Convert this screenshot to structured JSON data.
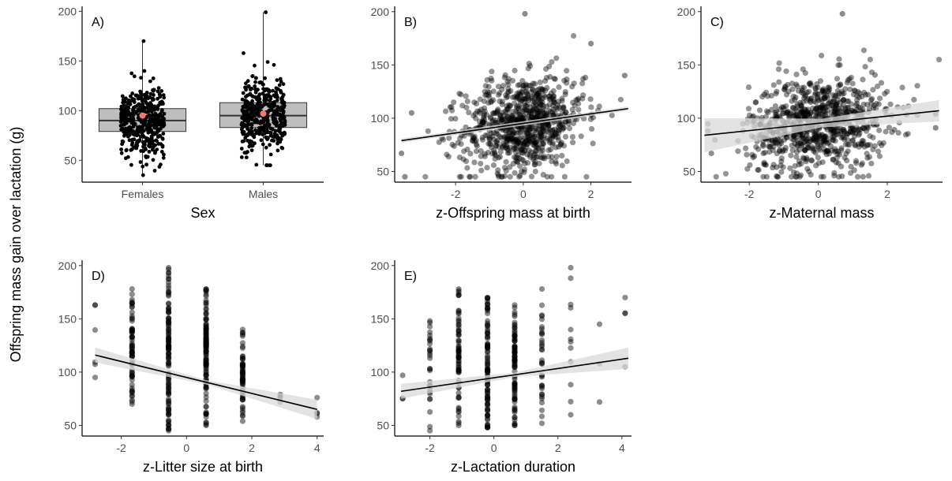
{
  "figure": {
    "shared_ylabel": "Offspring mass gain over lactation (g)",
    "colors": {
      "points": "#000000",
      "mean_point": "#f8766d",
      "box_fill": "#bebebe",
      "ribbon": "#d9d9d9",
      "fit_line": "#000000"
    }
  },
  "chart_data": [
    {
      "id": "A",
      "type": "box",
      "panel_label": "A)",
      "xlabel": "Sex",
      "ylabel": "Offspring mass gain over lactation (g)",
      "categories": [
        "Females",
        "Males"
      ],
      "ylim": [
        28,
        205
      ],
      "yticks": [
        50,
        100,
        150,
        200
      ],
      "boxes": [
        {
          "category": "Females",
          "q1": 79,
          "median": 90,
          "q3": 102,
          "mean": 95,
          "min": 35,
          "max": 170
        },
        {
          "category": "Males",
          "q1": 83,
          "median": 95,
          "q3": 108,
          "mean": 97,
          "min": 45,
          "max": 199
        }
      ],
      "jitter_points": "individual observations overlaid as black jittered points",
      "grid": false
    },
    {
      "id": "B",
      "type": "scatter",
      "panel_label": "B)",
      "xlabel": "z-Offspring mass at birth",
      "ylabel": "Offspring mass gain over lactation (g)",
      "xlim": [
        -3.8,
        3.2
      ],
      "ylim": [
        40,
        205
      ],
      "xticks": [
        -2,
        0,
        2
      ],
      "yticks": [
        50,
        100,
        150,
        200
      ],
      "fit": {
        "x": [
          -3.6,
          3.1
        ],
        "y": [
          79,
          109
        ],
        "ci": 2
      },
      "point_cloud": {
        "x_center": 0,
        "x_sd": 0.9,
        "y_center": 92,
        "y_sd": 22
      },
      "notable_points": [
        {
          "x": -3.5,
          "y": 45
        },
        {
          "x": -3.6,
          "y": 67
        },
        {
          "x": -3.3,
          "y": 105
        },
        {
          "x": 0.05,
          "y": 198
        },
        {
          "x": 3.0,
          "y": 140
        },
        {
          "x": 2.0,
          "y": 170
        }
      ],
      "grid": false
    },
    {
      "id": "C",
      "type": "scatter",
      "panel_label": "C)",
      "xlabel": "z-Maternal mass",
      "ylabel": "Offspring mass gain over lactation (g)",
      "xlim": [
        -3.4,
        3.6
      ],
      "ylim": [
        40,
        205
      ],
      "xticks": [
        -2,
        0,
        2
      ],
      "yticks": [
        50,
        100,
        150,
        200
      ],
      "fit": {
        "x": [
          -3.3,
          3.5
        ],
        "y": [
          84,
          107
        ],
        "ci_left": 16,
        "ci_mid": 4,
        "ci_right": 10
      },
      "point_cloud": {
        "x_center": 0,
        "x_sd": 1.0,
        "y_center": 93,
        "y_sd": 22
      },
      "notable_points": [
        {
          "x": 0.7,
          "y": 198
        },
        {
          "x": 3.4,
          "y": 91
        },
        {
          "x": 3.4,
          "y": 104
        },
        {
          "x": -3.2,
          "y": 88
        },
        {
          "x": -3.1,
          "y": 67
        }
      ],
      "grid": false
    },
    {
      "id": "D",
      "type": "scatter",
      "panel_label": "D)",
      "xlabel": "z-Litter size at birth",
      "ylabel": "Offspring mass gain over lactation (g)",
      "xlim": [
        -3.2,
        4.2
      ],
      "ylim": [
        40,
        205
      ],
      "xticks": [
        -2,
        0,
        2,
        4
      ],
      "yticks": [
        50,
        100,
        150,
        200
      ],
      "fit": {
        "x": [
          -2.8,
          4.0
        ],
        "y": [
          116,
          65
        ],
        "ci_left": 7,
        "ci_mid": 2,
        "ci_right": 9
      },
      "columns": [
        {
          "x": -2.8,
          "min": 95,
          "max": 163,
          "n": 6
        },
        {
          "x": -1.67,
          "min": 70,
          "max": 178,
          "n": 70
        },
        {
          "x": -0.55,
          "min": 45,
          "max": 198,
          "n": 120
        },
        {
          "x": 0.6,
          "min": 50,
          "max": 178,
          "n": 120
        },
        {
          "x": 1.72,
          "min": 54,
          "max": 140,
          "n": 60
        },
        {
          "x": 2.87,
          "min": 72,
          "max": 79,
          "n": 4
        },
        {
          "x": 4.0,
          "min": 58,
          "max": 76,
          "n": 4
        }
      ],
      "grid": false
    },
    {
      "id": "E",
      "type": "scatter",
      "panel_label": "E)",
      "xlabel": "z-Lactation duration",
      "ylabel": "Offspring mass gain over lactation (g)",
      "xlim": [
        -3.1,
        4.3
      ],
      "ylim": [
        40,
        205
      ],
      "xticks": [
        -2,
        0,
        2,
        4
      ],
      "yticks": [
        50,
        100,
        150,
        200
      ],
      "fit": {
        "x": [
          -2.9,
          4.2
        ],
        "y": [
          82,
          113
        ],
        "ci_left": 7,
        "ci_mid": 2,
        "ci_right": 10
      },
      "columns": [
        {
          "x": -2.85,
          "min": 75,
          "max": 97,
          "n": 3
        },
        {
          "x": -2.0,
          "min": 45,
          "max": 148,
          "n": 30
        },
        {
          "x": -1.1,
          "min": 50,
          "max": 178,
          "n": 70
        },
        {
          "x": -0.2,
          "min": 48,
          "max": 170,
          "n": 100
        },
        {
          "x": 0.65,
          "min": 50,
          "max": 163,
          "n": 90
        },
        {
          "x": 1.5,
          "min": 52,
          "max": 178,
          "n": 35
        },
        {
          "x": 2.4,
          "min": 60,
          "max": 198,
          "n": 12
        },
        {
          "x": 3.3,
          "min": 72,
          "max": 145,
          "n": 3
        },
        {
          "x": 4.1,
          "min": 105,
          "max": 170,
          "n": 4
        }
      ],
      "grid": false
    }
  ]
}
